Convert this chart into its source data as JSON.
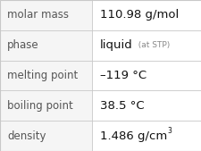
{
  "rows": [
    {
      "label": "molar mass",
      "value": "110.98 g/mol"
    },
    {
      "label": "phase",
      "value_parts": [
        {
          "text": "liquid",
          "bold": false,
          "size": "normal"
        },
        {
          "text": "  (at STP)",
          "bold": false,
          "size": "small"
        }
      ]
    },
    {
      "label": "melting point",
      "value": "–119 °C"
    },
    {
      "label": "boiling point",
      "value": "38.5 °C"
    },
    {
      "label": "density",
      "value": "1.486 g/cm",
      "superscript": "3"
    }
  ],
  "bg_color": "#e8e8e8",
  "cell_bg": "#f5f5f5",
  "border_color": "#c8c8c8",
  "label_color": "#555555",
  "value_color": "#111111",
  "stp_color": "#888888",
  "font_size_label": 8.5,
  "font_size_value": 9.5,
  "font_size_small": 6.5,
  "col_split": 0.455,
  "fig_width": 2.26,
  "fig_height": 1.69,
  "dpi": 100
}
